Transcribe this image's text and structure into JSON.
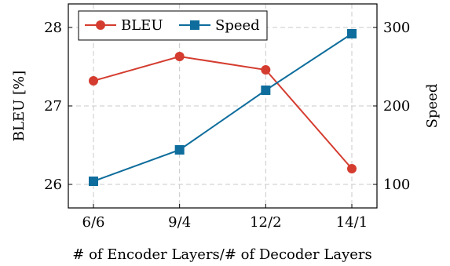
{
  "chart_data": {
    "type": "line",
    "categories": [
      "6/6",
      "9/4",
      "12/2",
      "14/1"
    ],
    "xlabel": "# of Encoder Layers/# of Decoder Layers",
    "grid": true,
    "legend_position": "top-left",
    "left_axis": {
      "label": "BLEU [%]",
      "ylim": [
        25.7,
        28.3
      ],
      "ticks": [
        26,
        27,
        28
      ]
    },
    "right_axis": {
      "label": "Speed",
      "ylim": [
        70,
        330
      ],
      "ticks": [
        100,
        200,
        300
      ]
    },
    "series": [
      {
        "name": "BLEU",
        "axis": "left",
        "color": "#d43c2f",
        "marker": "circle",
        "values": [
          27.32,
          27.63,
          27.46,
          26.2
        ]
      },
      {
        "name": "Speed",
        "axis": "right",
        "color": "#0e6d9c",
        "marker": "square",
        "values": [
          104,
          144,
          220,
          292
        ]
      }
    ]
  }
}
